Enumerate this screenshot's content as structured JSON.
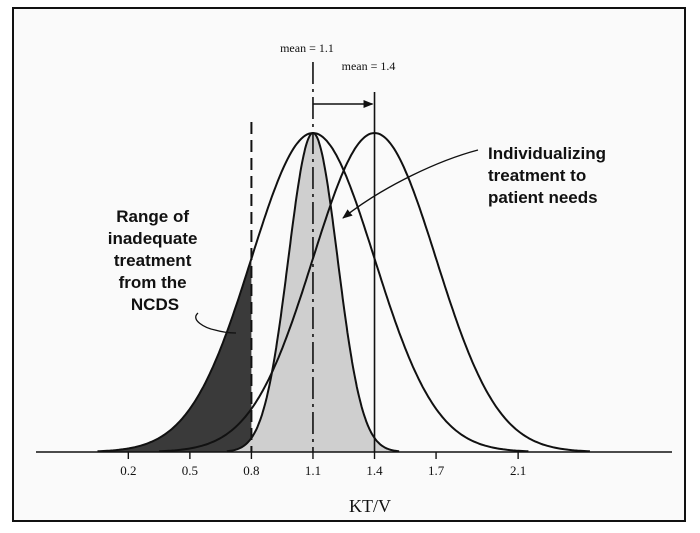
{
  "chart_data": {
    "type": "line",
    "title": "",
    "xlabel": "KT/V",
    "ylabel": "",
    "x_ticks": [
      "0.2",
      "0.5",
      "0.8",
      "1.1",
      "1.4",
      "1.7",
      "2.1"
    ],
    "xlim": [
      -0.25,
      2.85
    ],
    "grid": false,
    "series": [
      {
        "mean": 1.1,
        "sd": 0.12
      },
      {
        "mean": 1.1,
        "sd": 0.3
      },
      {
        "mean": 1.4,
        "sd": 0.3
      }
    ],
    "reference_lines": [
      {
        "x": 0.8,
        "style": "dashed"
      },
      {
        "x": 1.1,
        "style": "dashdot"
      },
      {
        "x": 1.4,
        "style": "solid"
      }
    ],
    "mean_labels": [
      {
        "x": 1.1,
        "label": "mean = 1.1"
      },
      {
        "x": 1.4,
        "label": "mean = 1.4"
      }
    ],
    "shifted_region": {
      "from": 1.1,
      "to": 1.4
    },
    "inadequate_threshold": 0.8,
    "annotations": {
      "inadequate": [
        "Range of",
        "inadequate",
        "treatment",
        "from the",
        "NCDS"
      ],
      "individualizing": [
        "Individualizing",
        "treatment to",
        "patient needs"
      ]
    },
    "colors": {
      "line": "#111111",
      "dark_fill": "#3a3a3a",
      "light_fill": "#cfcfcf",
      "background": "#fafafa"
    }
  }
}
